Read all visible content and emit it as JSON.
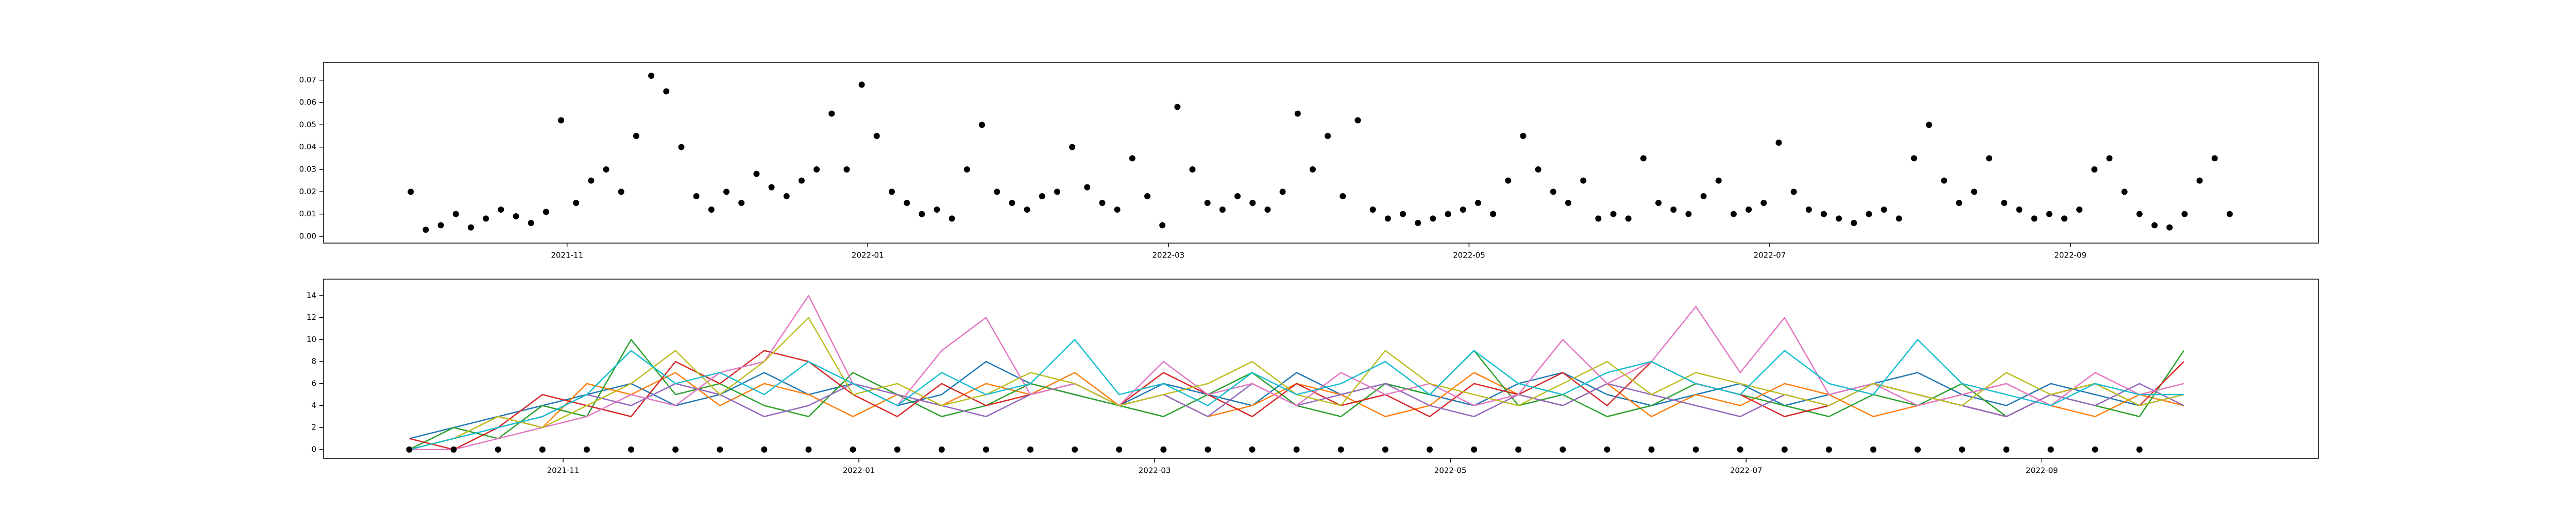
{
  "chart_data": [
    {
      "type": "scatter",
      "color": "#000000",
      "x": [
        -0.04,
        0.06,
        0.16,
        0.26,
        0.36,
        0.46,
        0.56,
        0.66,
        0.76,
        0.86,
        0.96,
        1.06,
        1.16,
        1.26,
        1.36,
        1.46,
        1.56,
        1.66,
        1.76,
        1.86,
        1.96,
        2.06,
        2.16,
        2.26,
        2.36,
        2.46,
        2.56,
        2.66,
        2.76,
        2.86,
        2.96,
        3.06,
        3.16,
        3.26,
        3.36,
        3.46,
        3.56,
        3.66,
        3.76,
        3.86,
        3.96,
        4.06,
        4.16,
        4.26,
        4.36,
        4.46,
        4.56,
        4.66,
        4.76,
        4.86,
        4.96,
        5.06,
        5.16,
        5.26,
        5.36,
        5.46,
        5.56,
        5.66,
        5.76,
        5.86,
        5.96,
        6.06,
        6.16,
        6.26,
        6.36,
        6.46,
        6.56,
        6.66,
        6.76,
        6.86,
        6.96,
        7.06,
        7.16,
        7.26,
        7.36,
        7.46,
        7.56,
        7.66,
        7.76,
        7.86,
        7.96,
        8.06,
        8.16,
        8.26,
        8.36,
        8.46,
        8.56,
        8.66,
        8.76,
        8.86,
        8.96,
        9.06,
        9.16,
        9.26,
        9.36,
        9.46,
        9.56,
        9.66,
        9.76,
        9.86,
        9.96,
        10.06,
        10.16,
        10.26,
        10.36,
        10.46,
        10.56,
        10.66,
        10.76,
        10.86,
        10.96,
        11.06,
        11.16,
        11.26,
        11.36,
        11.46,
        11.56,
        11.66,
        11.76,
        11.86,
        11.96,
        12.06
      ],
      "values": [
        0.02,
        0.003,
        0.005,
        0.01,
        0.004,
        0.008,
        0.012,
        0.009,
        0.006,
        0.011,
        0.052,
        0.015,
        0.025,
        0.03,
        0.02,
        0.045,
        0.072,
        0.065,
        0.04,
        0.018,
        0.012,
        0.02,
        0.015,
        0.028,
        0.022,
        0.018,
        0.025,
        0.03,
        0.055,
        0.03,
        0.068,
        0.045,
        0.02,
        0.015,
        0.01,
        0.012,
        0.008,
        0.03,
        0.05,
        0.02,
        0.015,
        0.012,
        0.018,
        0.02,
        0.04,
        0.022,
        0.015,
        0.012,
        0.035,
        0.018,
        0.005,
        0.058,
        0.03,
        0.015,
        0.012,
        0.018,
        0.015,
        0.012,
        0.02,
        0.055,
        0.03,
        0.045,
        0.018,
        0.052,
        0.012,
        0.008,
        0.01,
        0.006,
        0.008,
        0.01,
        0.012,
        0.015,
        0.01,
        0.025,
        0.045,
        0.03,
        0.02,
        0.015,
        0.025,
        0.008,
        0.01,
        0.008,
        0.035,
        0.015,
        0.012,
        0.01,
        0.018,
        0.025,
        0.01,
        0.012,
        0.015,
        0.042,
        0.02,
        0.012,
        0.01,
        0.008,
        0.006,
        0.01,
        0.012,
        0.008,
        0.035,
        0.05,
        0.025,
        0.015,
        0.02,
        0.035,
        0.015,
        0.012,
        0.008,
        0.01,
        0.008,
        0.012,
        0.03,
        0.035,
        0.02,
        0.01,
        0.005,
        0.004,
        0.01,
        0.025,
        0.035,
        0.01
      ],
      "xlim": [
        -0.62,
        12.65
      ],
      "xticks": [
        {
          "value": 1,
          "label": "2021-11"
        },
        {
          "value": 3,
          "label": "2022-01"
        },
        {
          "value": 5,
          "label": "2022-03"
        },
        {
          "value": 7,
          "label": "2022-05"
        },
        {
          "value": 9,
          "label": "2022-07"
        },
        {
          "value": 11,
          "label": "2022-09"
        }
      ],
      "ylim": [
        -0.003,
        0.078
      ],
      "yticks": [
        {
          "value": 0,
          "label": "0.00"
        },
        0.01,
        0.02,
        0.03,
        0.04,
        0.05,
        0.06,
        0.07
      ]
    },
    {
      "type": "line",
      "x": [
        -0.04,
        0.26,
        0.56,
        0.86,
        1.16,
        1.46,
        1.76,
        2.06,
        2.36,
        2.66,
        2.96,
        3.26,
        3.56,
        3.86,
        4.16,
        4.46,
        4.76,
        5.06,
        5.36,
        5.66,
        5.96,
        6.26,
        6.56,
        6.86,
        7.16,
        7.46,
        7.76,
        8.06,
        8.36,
        8.66,
        8.96,
        9.26,
        9.56,
        9.86,
        10.16,
        10.46,
        10.76,
        11.06,
        11.36,
        11.66,
        11.96
      ],
      "series": [
        {
          "color": "#1f77b4",
          "values": [
            1,
            2,
            3,
            4,
            5,
            6,
            4,
            5,
            7,
            5,
            6,
            4,
            5,
            8,
            6,
            5,
            4,
            6,
            5,
            4,
            7,
            5,
            6,
            5,
            4,
            6,
            7,
            5,
            4,
            5,
            6,
            4,
            5,
            6,
            7,
            5,
            4,
            6,
            5,
            4,
            5
          ]
        },
        {
          "color": "#ff7f0e",
          "values": [
            0,
            1,
            3,
            2,
            6,
            5,
            7,
            4,
            6,
            5,
            3,
            5,
            4,
            6,
            5,
            7,
            4,
            5,
            3,
            4,
            6,
            5,
            3,
            4,
            7,
            5,
            4,
            6,
            3,
            5,
            4,
            6,
            5,
            3,
            4,
            5,
            6,
            4,
            3,
            5,
            4
          ]
        },
        {
          "color": "#2ca02c",
          "values": [
            0,
            2,
            1,
            4,
            3,
            10,
            5,
            6,
            4,
            3,
            7,
            5,
            3,
            4,
            6,
            5,
            4,
            3,
            5,
            7,
            4,
            3,
            6,
            5,
            9,
            4,
            5,
            3,
            4,
            6,
            5,
            4,
            3,
            5,
            4,
            6,
            3,
            5,
            4,
            3,
            9
          ]
        },
        {
          "color": "#d62728",
          "values": [
            1,
            0,
            2,
            5,
            4,
            3,
            8,
            6,
            9,
            8,
            5,
            3,
            6,
            4,
            5,
            6,
            4,
            7,
            5,
            3,
            6,
            4,
            5,
            3,
            6,
            5,
            7,
            4,
            8,
            6,
            5,
            3,
            4,
            6,
            5,
            4,
            3,
            5,
            6,
            4,
            8
          ]
        },
        {
          "color": "#9467bd",
          "values": [
            0,
            1,
            2,
            3,
            5,
            4,
            6,
            5,
            3,
            4,
            6,
            5,
            4,
            3,
            5,
            6,
            4,
            5,
            3,
            6,
            4,
            5,
            6,
            4,
            3,
            5,
            4,
            6,
            5,
            4,
            3,
            5,
            4,
            6,
            5,
            4,
            3,
            5,
            4,
            6,
            4
          ]
        },
        {
          "color": "#e377c2",
          "values": [
            0,
            0,
            1,
            2,
            3,
            5,
            4,
            7,
            8,
            14,
            6,
            4,
            9,
            12,
            5,
            6,
            4,
            8,
            5,
            6,
            4,
            7,
            5,
            6,
            4,
            5,
            10,
            6,
            8,
            13,
            7,
            12,
            5,
            6,
            4,
            5,
            6,
            4,
            7,
            5,
            6
          ]
        },
        {
          "color": "#bcbd22",
          "values": [
            0,
            1,
            3,
            2,
            4,
            6,
            9,
            5,
            8,
            12,
            5,
            6,
            4,
            5,
            7,
            6,
            4,
            5,
            6,
            8,
            5,
            4,
            9,
            6,
            5,
            4,
            6,
            8,
            5,
            7,
            6,
            5,
            4,
            6,
            5,
            4,
            7,
            5,
            6,
            4,
            5
          ]
        },
        {
          "color": "#17becf",
          "values": [
            0,
            1,
            2,
            3,
            5,
            9,
            6,
            7,
            5,
            8,
            6,
            4,
            7,
            5,
            6,
            10,
            5,
            6,
            4,
            7,
            5,
            6,
            8,
            5,
            9,
            6,
            5,
            7,
            8,
            6,
            5,
            9,
            6,
            5,
            10,
            6,
            5,
            4,
            6,
            5,
            5
          ]
        },
        {
          "color": "#000000",
          "style": "markers",
          "values": [
            0,
            0,
            0,
            0,
            0,
            0,
            0,
            0,
            0,
            0,
            0,
            0,
            0,
            0,
            0,
            0,
            0,
            0,
            0,
            0,
            0,
            0,
            0,
            0,
            0,
            0,
            0,
            0,
            0,
            0,
            0,
            0,
            0,
            0,
            0,
            0,
            0,
            0,
            0,
            0,
            null
          ]
        }
      ],
      "xlim": [
        -0.62,
        12.87
      ],
      "xticks": [
        {
          "value": 1,
          "label": "2021-11"
        },
        {
          "value": 3,
          "label": "2022-01"
        },
        {
          "value": 5,
          "label": "2022-03"
        },
        {
          "value": 7,
          "label": "2022-05"
        },
        {
          "value": 9,
          "label": "2022-07"
        },
        {
          "value": 11,
          "label": "2022-09"
        }
      ],
      "ylim": [
        -0.8,
        15.5
      ],
      "yticks": [
        0,
        2,
        4,
        6,
        8,
        10,
        12,
        14
      ]
    }
  ]
}
